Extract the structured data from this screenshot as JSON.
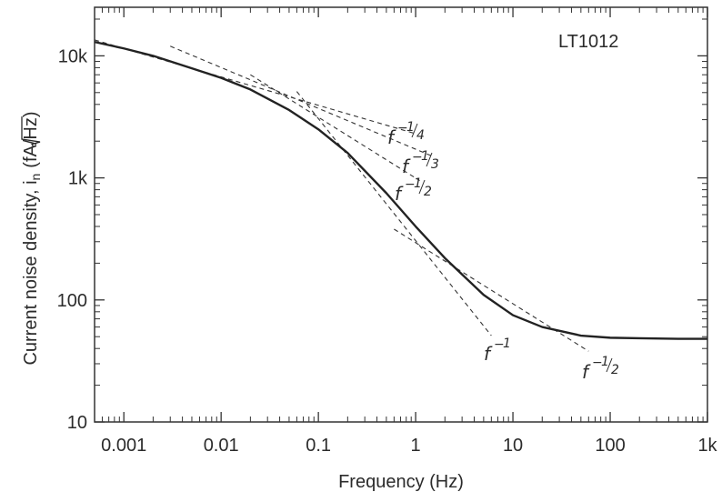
{
  "chart_data": {
    "type": "line",
    "title": "LT1012",
    "xlabel": "Frequency (Hz)",
    "ylabel": "Current noise density, i",
    "ylabel_sub": "n",
    "ylabel_units_open": "(fA/",
    "ylabel_units_radicand": "Hz",
    "ylabel_units_close": ")",
    "xscale": "log",
    "yscale": "log",
    "xlim": [
      0.0005,
      1000
    ],
    "ylim": [
      10,
      25000
    ],
    "grid": false,
    "x_ticks": [
      0.001,
      0.01,
      0.1,
      1,
      10,
      100,
      1000
    ],
    "x_tick_labels": [
      "0.001",
      "0.01",
      "0.1",
      "1",
      "10",
      "100",
      "1k"
    ],
    "y_ticks": [
      10,
      100,
      1000,
      10000
    ],
    "y_tick_labels": [
      "10",
      "100",
      "1k",
      "10k"
    ],
    "series": [
      {
        "style": "solid",
        "x": [
          0.0005,
          0.001,
          0.002,
          0.005,
          0.01,
          0.02,
          0.05,
          0.1,
          0.2,
          0.5,
          1,
          2,
          5,
          10,
          20,
          50,
          100,
          200,
          500,
          1000
        ],
        "y": [
          13000,
          11500,
          10000,
          7900,
          6600,
          5300,
          3600,
          2500,
          1600,
          750,
          400,
          220,
          110,
          75,
          60,
          51,
          49,
          48.5,
          48,
          48
        ]
      }
    ],
    "asymptotes": [
      {
        "slope": "-1/4",
        "style": "dashed",
        "x": [
          0.0005,
          1.0
        ],
        "y": [
          13500,
          2300
        ]
      },
      {
        "slope": "-1/3",
        "style": "dashed",
        "x": [
          0.003,
          1.5
        ],
        "y": [
          12000,
          1500
        ]
      },
      {
        "slope": "-1/2",
        "style": "dashed",
        "x": [
          0.02,
          1.1
        ],
        "y": [
          7000,
          950
        ]
      },
      {
        "slope": "-1",
        "style": "dashed",
        "x": [
          0.06,
          6
        ],
        "y": [
          5100,
          51
        ]
      },
      {
        "slope": "-1/2",
        "style": "dashed",
        "x": [
          0.6,
          60
        ],
        "y": [
          380,
          38
        ]
      }
    ],
    "annotations": [
      {
        "base": "f",
        "exp_sign": "−",
        "exp_num": "1",
        "exp_den": "4"
      },
      {
        "base": "f",
        "exp_sign": "−",
        "exp_num": "1",
        "exp_den": "3"
      },
      {
        "base": "f",
        "exp_sign": "−",
        "exp_num": "1",
        "exp_den": "2"
      },
      {
        "base": "f",
        "exp_sign": "−",
        "exp_num": "1",
        "exp_den": ""
      },
      {
        "base": "f",
        "exp_sign": "−",
        "exp_num": "1",
        "exp_den": "2"
      }
    ]
  }
}
